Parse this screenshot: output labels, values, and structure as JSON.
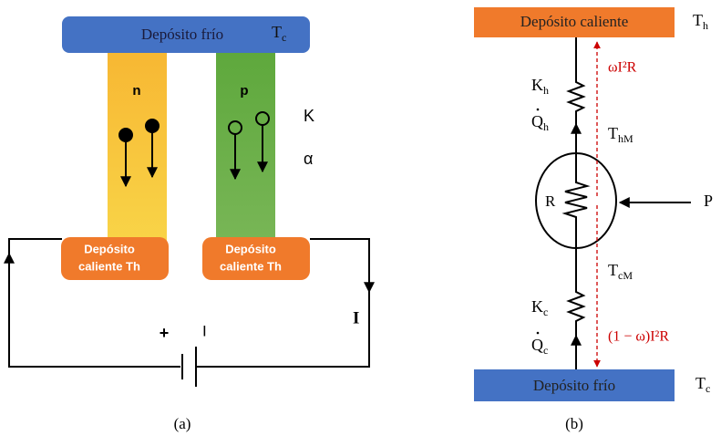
{
  "panel_a": {
    "cold_reservoir": {
      "label": "Depósito frío",
      "temp": {
        "main": "T",
        "sub": "c"
      }
    },
    "legs": {
      "n": "n",
      "p": "p"
    },
    "properties": {
      "k": "K",
      "alpha": "α"
    },
    "hot_reservoirs": [
      {
        "line1": "Depósito",
        "line2": "caliente Th"
      },
      {
        "line1": "Depósito",
        "line2": "caliente Th"
      }
    ],
    "battery": {
      "plus": "+",
      "label": "I"
    },
    "current": "I",
    "caption": "(a)"
  },
  "panel_b": {
    "hot_reservoir": {
      "label": "Depósito caliente",
      "temp": {
        "main": "T",
        "sub": "h"
      }
    },
    "heat_top": "ωI²R",
    "k_hot": {
      "main": "K",
      "sub": "h"
    },
    "q_hot": {
      "main": "Q",
      "sub": "h"
    },
    "t_hm": {
      "main": "T",
      "sub": "hM"
    },
    "resistor": "R",
    "power": "P",
    "t_cm": {
      "main": "T",
      "sub": "cM"
    },
    "k_cold": {
      "main": "K",
      "sub": "c"
    },
    "q_cold": {
      "main": "Q",
      "sub": "c"
    },
    "heat_bottom": "(1 − ω)I²R",
    "cold_reservoir": {
      "label": "Depósito frío",
      "temp": {
        "main": "T",
        "sub": "c"
      }
    },
    "caption": "(b)"
  }
}
